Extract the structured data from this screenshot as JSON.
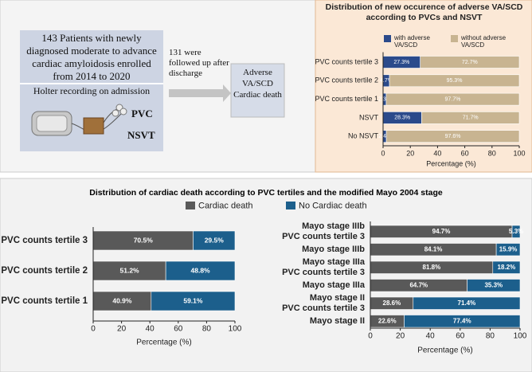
{
  "diagram": {
    "enrollment": "143 Patients with newly diagnosed moderate to advance cardiac amyloidosis enrolled from 2014 to 2020",
    "holter": "Holter recording on admission",
    "pvc": "PVC",
    "nsvt": "NSVT",
    "followup": "131 were followed up after discharge",
    "outcome": "Adverse VA/SCD Cardiac death"
  },
  "chart_data": [
    {
      "type": "hbar_stacked",
      "title": "Distribution of new occurence of adverse VA/SCD according to PVCs and NSVT",
      "categories": [
        [
          "PVC counts tertile 3"
        ],
        [
          "PVC counts tertile 2"
        ],
        [
          "PVC counts tertile 1"
        ],
        [
          "NSVT"
        ],
        [
          "No NSVT"
        ]
      ],
      "series": [
        {
          "name": "with adverse VA/SCD",
          "color": "#2b4a8b",
          "values": [
            27.3,
            4.7,
            2.3,
            28.3,
            2.4
          ],
          "value_labels": [
            "27.3%",
            "4.7%",
            "2.3%",
            "28.3%",
            "2.4%"
          ]
        },
        {
          "name": "without adverse VA/SCD",
          "color": "#c8b491",
          "values": [
            72.7,
            95.3,
            97.7,
            71.7,
            97.6
          ],
          "value_labels": [
            "72.7%",
            "95.3%",
            "97.7%",
            "71.7%",
            "97.6%"
          ]
        }
      ],
      "xlim": [
        0,
        100
      ],
      "xticks": [
        0,
        20,
        40,
        60,
        80,
        100
      ],
      "xlabel": "Percentage (%)"
    },
    {
      "type": "hbar_stacked",
      "title": "Distribution of cardiac death according to PVC tertiles and the modified Mayo 2004 stage",
      "categories": [
        [
          "PVC counts tertile 3"
        ],
        [
          "PVC counts tertile 2"
        ],
        [
          "PVC counts tertile 1"
        ]
      ],
      "series": [
        {
          "name": "Cardiac death",
          "color": "#595959",
          "values": [
            70.5,
            51.2,
            40.9
          ],
          "value_labels": [
            "70.5%",
            "51.2%",
            "40.9%"
          ]
        },
        {
          "name": "No Cardiac death",
          "color": "#1c5f8c",
          "values": [
            29.5,
            48.8,
            59.1
          ],
          "value_labels": [
            "29.5%",
            "48.8%",
            "59.1%"
          ]
        }
      ],
      "xlim": [
        0,
        100
      ],
      "xticks": [
        0,
        20,
        40,
        60,
        80,
        100
      ],
      "xlabel": "Percentage (%)"
    },
    {
      "type": "hbar_stacked",
      "categories": [
        [
          "Mayo stage IIIb",
          "PVC counts tertile 3"
        ],
        [
          "Mayo stage IIIb"
        ],
        [
          "Mayo stage IIIa",
          "PVC counts tertile 3"
        ],
        [
          "Mayo stage IIIa"
        ],
        [
          "Mayo stage II",
          "PVC counts tertile 3"
        ],
        [
          "Mayo stage II"
        ]
      ],
      "series": [
        {
          "name": "Cardiac death",
          "color": "#595959",
          "values": [
            94.7,
            84.1,
            81.8,
            64.7,
            28.6,
            22.6
          ],
          "value_labels": [
            "94.7%",
            "84.1%",
            "81.8%",
            "64.7%",
            "28.6%",
            "22.6%"
          ]
        },
        {
          "name": "No Cardiac death",
          "color": "#1c5f8c",
          "values": [
            5.3,
            15.9,
            18.2,
            35.3,
            71.4,
            77.4
          ],
          "value_labels": [
            "5.3%",
            "15.9%",
            "18.2%",
            "35.3%",
            "71.4%",
            "77.4%"
          ]
        }
      ],
      "xlim": [
        0,
        100
      ],
      "xticks": [
        0,
        20,
        40,
        60,
        80,
        100
      ],
      "xlabel": "Percentage (%)"
    }
  ]
}
